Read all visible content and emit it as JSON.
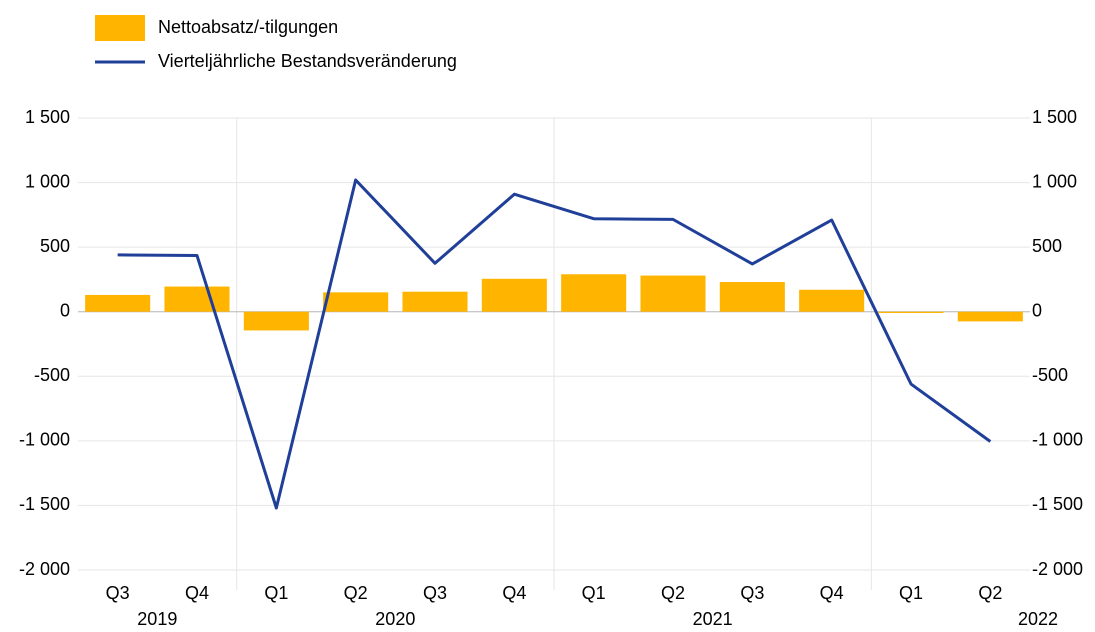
{
  "chart_data": {
    "type": "bar_line",
    "categories": [
      "Q3",
      "Q4",
      "Q1",
      "Q2",
      "Q3",
      "Q4",
      "Q1",
      "Q2",
      "Q3",
      "Q4",
      "Q1",
      "Q2"
    ],
    "year_groups": [
      {
        "label": "2019",
        "span": 2
      },
      {
        "label": "2020",
        "span": 4
      },
      {
        "label": "2021",
        "span": 4
      },
      {
        "label": "2022",
        "span": 2
      }
    ],
    "series": [
      {
        "name": "Nettoabsatz/-tilgungen",
        "type": "bar",
        "color": "#ffb400",
        "values": [
          130,
          195,
          -145,
          150,
          155,
          255,
          290,
          280,
          230,
          170,
          -10,
          -75
        ]
      },
      {
        "name": "Vierteljährliche Bestandsveränderung",
        "type": "line",
        "color": "#1f3f99",
        "axis": "y2",
        "values": [
          440,
          435,
          -1520,
          1020,
          375,
          910,
          720,
          715,
          370,
          710,
          -560,
          -1005
        ]
      }
    ],
    "ylim": [
      -2000,
      1500
    ],
    "yticks": [
      {
        "value": -2000,
        "label": "-2 000"
      },
      {
        "value": -1500,
        "label": "-1 500"
      },
      {
        "value": -1000,
        "label": "-1 000"
      },
      -500,
      0,
      500,
      {
        "value": 1000,
        "label": "1 000"
      },
      {
        "value": 1500,
        "label": "1 500"
      }
    ],
    "y2lim": [
      -2000,
      1500
    ],
    "y2ticks": [
      {
        "value": -2000,
        "label": "-2 000"
      },
      {
        "value": -1500,
        "label": "-1 500"
      },
      {
        "value": -1000,
        "label": "-1 000"
      },
      -500,
      0,
      500,
      {
        "value": 1000,
        "label": "1 000"
      },
      {
        "value": 1500,
        "label": "1 500"
      }
    ],
    "grid": true,
    "legend": "top-left"
  }
}
